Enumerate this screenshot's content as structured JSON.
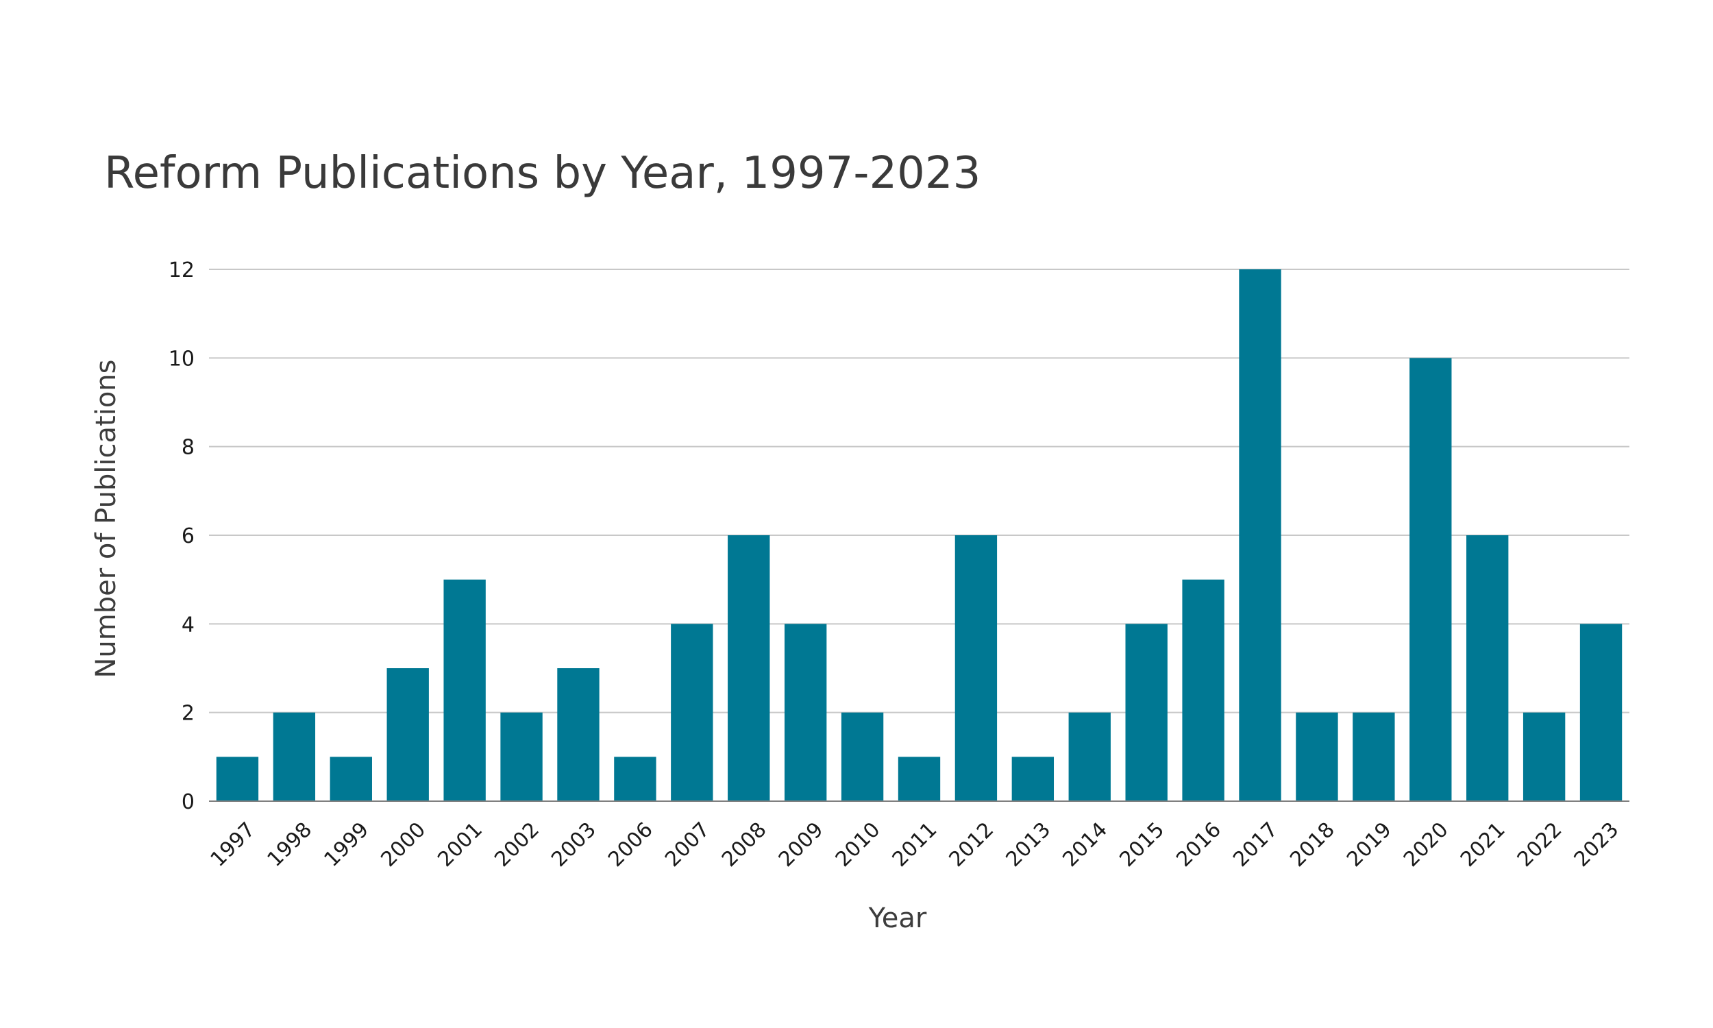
{
  "chart_data": {
    "type": "bar",
    "title": "Reform Publications by Year, 1997-2023",
    "xlabel": "Year",
    "ylabel": "Number of Publications",
    "categories": [
      "1997",
      "1998",
      "1999",
      "2000",
      "2001",
      "2002",
      "2003",
      "2006",
      "2007",
      "2008",
      "2009",
      "2010",
      "2011",
      "2012",
      "2013",
      "2014",
      "2015",
      "2016",
      "2017",
      "2018",
      "2019",
      "2020",
      "2021",
      "2022",
      "2023"
    ],
    "values": [
      1,
      2,
      1,
      3,
      5,
      2,
      3,
      1,
      4,
      6,
      4,
      2,
      1,
      6,
      1,
      2,
      4,
      5,
      12,
      2,
      2,
      10,
      6,
      2,
      4
    ],
    "ylim": [
      0,
      12
    ],
    "yticks": [
      0,
      2,
      4,
      6,
      8,
      10,
      12
    ],
    "grid": "horizontal",
    "legend": "none",
    "colors": {
      "bar": "#007893",
      "grid": "#c8c8c8",
      "axis": "#808080"
    }
  }
}
